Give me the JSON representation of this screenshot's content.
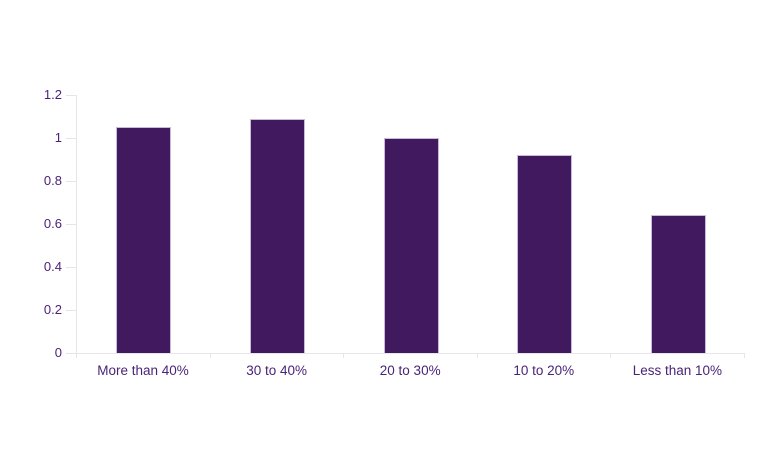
{
  "chart_data": {
    "type": "bar",
    "title": "",
    "categories": [
      "More than 40%",
      "30 to 40%",
      "20 to 30%",
      "10 to 20%",
      "Less than 10%"
    ],
    "values": [
      1.05,
      1.09,
      1.0,
      0.92,
      0.64
    ],
    "y_ticks": [
      0,
      0.2,
      0.4,
      0.6,
      0.8,
      1,
      1.2
    ],
    "y_tick_labels": [
      "0",
      "0.2",
      "0.4",
      "0.6",
      "0.8",
      "1",
      "1.2"
    ],
    "ylim": [
      0,
      1.2
    ],
    "xlabel": "",
    "ylabel": "",
    "grid": "off",
    "legend": "none",
    "colors": {
      "bar_fill": "#41195f",
      "bar_border": "#c9badb",
      "axis_line": "#e7e5ea",
      "tick_label_text": "#4a2377"
    }
  }
}
